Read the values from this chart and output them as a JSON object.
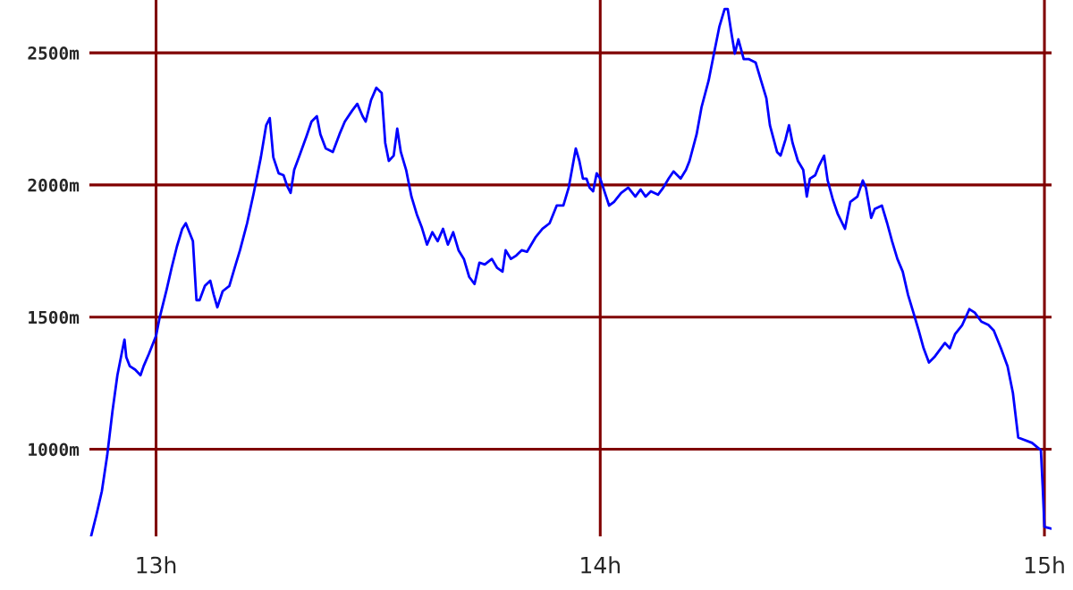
{
  "chart_data": {
    "type": "line",
    "xlim": [
      12.85,
      15.016
    ],
    "ylim": [
      670,
      2700
    ],
    "xticks": [
      {
        "value": 13,
        "label": "13h"
      },
      {
        "value": 14,
        "label": "14h"
      },
      {
        "value": 15,
        "label": "15h"
      }
    ],
    "yticks": [
      {
        "value": 1000,
        "label": "1000m"
      },
      {
        "value": 1500,
        "label": "1500m"
      },
      {
        "value": 2000,
        "label": "2000m"
      },
      {
        "value": 2500,
        "label": "2500m"
      }
    ],
    "grid": true,
    "marker": "none",
    "line_style": "solid",
    "series": [
      {
        "color": "#0000ff",
        "x": [
          12.854,
          12.866,
          12.878,
          12.89,
          12.902,
          12.913,
          12.925,
          12.929,
          12.933,
          12.941,
          12.953,
          12.965,
          12.972,
          12.984,
          13.0,
          13.008,
          13.024,
          13.035,
          13.047,
          13.059,
          13.067,
          13.075,
          13.083,
          13.091,
          13.098,
          13.11,
          13.122,
          13.13,
          13.138,
          13.15,
          13.165,
          13.177,
          13.189,
          13.205,
          13.22,
          13.236,
          13.248,
          13.256,
          13.264,
          13.276,
          13.287,
          13.295,
          13.303,
          13.311,
          13.323,
          13.339,
          13.35,
          13.362,
          13.37,
          13.382,
          13.398,
          13.413,
          13.425,
          13.441,
          13.453,
          13.465,
          13.472,
          13.484,
          13.496,
          13.508,
          13.516,
          13.524,
          13.535,
          13.543,
          13.551,
          13.563,
          13.575,
          13.587,
          13.598,
          13.61,
          13.622,
          13.634,
          13.646,
          13.657,
          13.669,
          13.681,
          13.693,
          13.705,
          13.717,
          13.728,
          13.74,
          13.756,
          13.768,
          13.78,
          13.787,
          13.799,
          13.811,
          13.823,
          13.835,
          13.854,
          13.87,
          13.886,
          13.902,
          13.917,
          13.929,
          13.937,
          13.945,
          13.953,
          13.961,
          13.969,
          13.976,
          13.984,
          13.992,
          14.0,
          14.008,
          14.02,
          14.031,
          14.047,
          14.063,
          14.079,
          14.091,
          14.102,
          14.114,
          14.13,
          14.142,
          14.154,
          14.165,
          14.181,
          14.193,
          14.201,
          14.217,
          14.228,
          14.244,
          14.256,
          14.268,
          14.28,
          14.287,
          14.295,
          14.303,
          14.311,
          14.323,
          14.335,
          14.35,
          14.362,
          14.374,
          14.382,
          14.398,
          14.406,
          14.417,
          14.425,
          14.433,
          14.445,
          14.457,
          14.465,
          14.472,
          14.484,
          14.492,
          14.504,
          14.512,
          14.524,
          14.535,
          14.551,
          14.563,
          14.579,
          14.591,
          14.598,
          14.61,
          14.618,
          14.634,
          14.646,
          14.657,
          14.669,
          14.681,
          14.693,
          14.705,
          14.717,
          14.728,
          14.74,
          14.752,
          14.764,
          14.776,
          14.787,
          14.799,
          14.815,
          14.831,
          14.843,
          14.858,
          14.874,
          14.886,
          14.902,
          14.917,
          14.929,
          14.941,
          14.972,
          14.992,
          14.996,
          15.0,
          15.016
        ],
        "values": [
          672,
          753,
          841,
          976,
          1145,
          1280,
          1382,
          1415,
          1348,
          1314,
          1301,
          1280,
          1314,
          1361,
          1429,
          1497,
          1605,
          1686,
          1767,
          1834,
          1855,
          1821,
          1787,
          1564,
          1564,
          1618,
          1638,
          1584,
          1537,
          1598,
          1618,
          1686,
          1753,
          1855,
          1970,
          2105,
          2226,
          2253,
          2105,
          2044,
          2037,
          1997,
          1970,
          2057,
          2111,
          2186,
          2240,
          2260,
          2192,
          2138,
          2125,
          2192,
          2240,
          2280,
          2307,
          2260,
          2240,
          2321,
          2368,
          2348,
          2159,
          2091,
          2111,
          2213,
          2125,
          2057,
          1956,
          1889,
          1841,
          1774,
          1821,
          1787,
          1834,
          1774,
          1821,
          1753,
          1720,
          1652,
          1625,
          1706,
          1699,
          1720,
          1686,
          1672,
          1753,
          1720,
          1733,
          1753,
          1747,
          1801,
          1834,
          1855,
          1922,
          1922,
          1990,
          2064,
          2138,
          2091,
          2024,
          2024,
          1990,
          1976,
          2044,
          2024,
          1983,
          1922,
          1936,
          1970,
          1990,
          1956,
          1983,
          1956,
          1976,
          1963,
          1990,
          2024,
          2051,
          2024,
          2057,
          2091,
          2192,
          2294,
          2395,
          2497,
          2598,
          2666,
          2666,
          2578,
          2497,
          2551,
          2476,
          2476,
          2463,
          2395,
          2328,
          2226,
          2125,
          2111,
          2172,
          2226,
          2159,
          2091,
          2057,
          1956,
          2024,
          2037,
          2071,
          2111,
          2017,
          1943,
          1889,
          1834,
          1936,
          1956,
          2017,
          1990,
          1875,
          1909,
          1922,
          1855,
          1787,
          1720,
          1672,
          1584,
          1517,
          1449,
          1382,
          1328,
          1348,
          1375,
          1402,
          1382,
          1436,
          1470,
          1530,
          1517,
          1483,
          1470,
          1449,
          1382,
          1314,
          1213,
          1044,
          1024,
          996,
          861,
          706,
          699
        ]
      }
    ]
  }
}
